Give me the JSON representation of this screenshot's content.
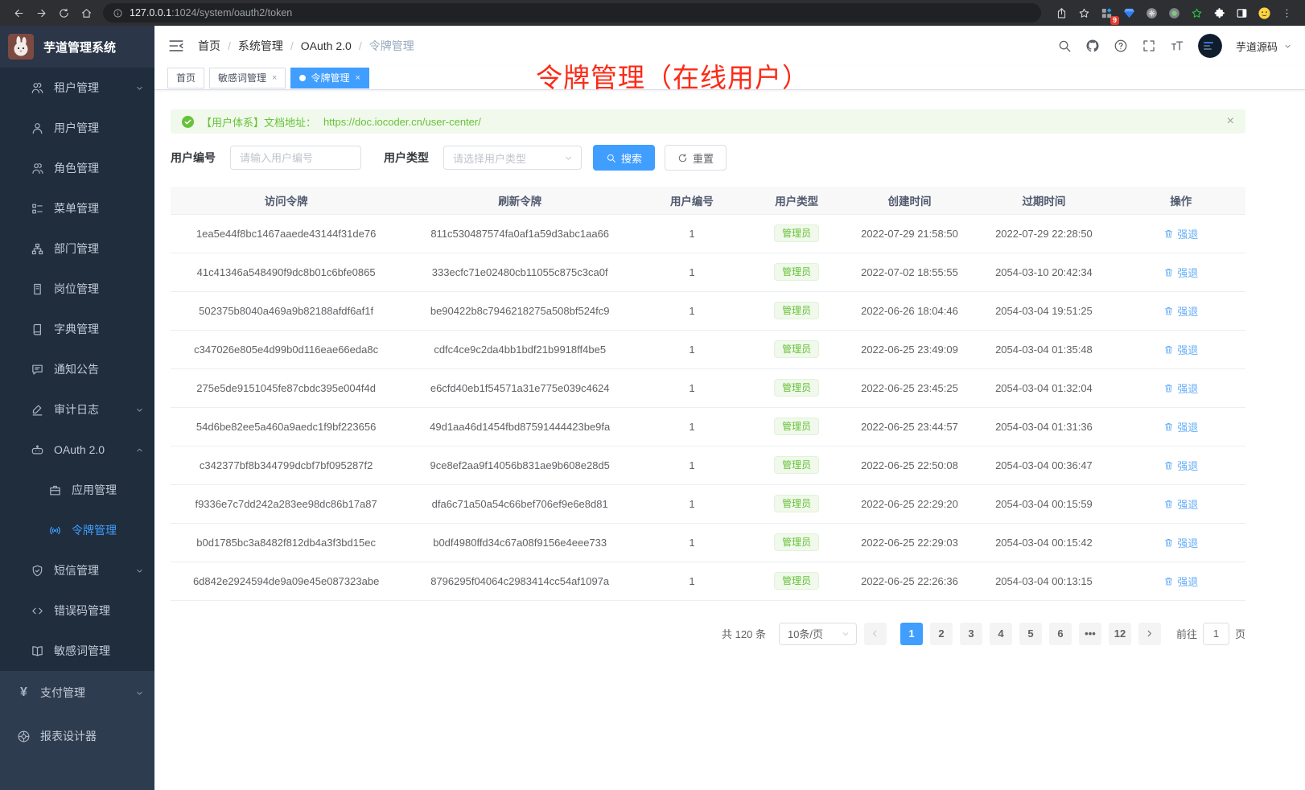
{
  "colors": {
    "accent": "#409eff",
    "success": "#67c23a",
    "annotation_red": "#fb2b17",
    "sidebar_dark": "#1f2d3d",
    "sidebar_light": "#2e3c50"
  },
  "browser": {
    "url_host": "127.0.0.1",
    "url_rest": ":1024/system/oauth2/token",
    "extension_badge": "9"
  },
  "sidebar": {
    "logo_title": "芋道管理系统",
    "menu": [
      {
        "label": "租户管理",
        "icon": "tenants-icon",
        "level": 1,
        "chevron": "down",
        "section": "upper"
      },
      {
        "label": "用户管理",
        "icon": "user-icon",
        "level": 1,
        "section": "upper"
      },
      {
        "label": "角色管理",
        "icon": "roles-icon",
        "level": 1,
        "section": "upper"
      },
      {
        "label": "菜单管理",
        "icon": "menu-icon",
        "level": 1,
        "section": "upper"
      },
      {
        "label": "部门管理",
        "icon": "dept-icon",
        "level": 1,
        "section": "upper"
      },
      {
        "label": "岗位管理",
        "icon": "post-icon",
        "level": 1,
        "section": "upper"
      },
      {
        "label": "字典管理",
        "icon": "dict-icon",
        "level": 1,
        "section": "upper"
      },
      {
        "label": "通知公告",
        "icon": "notice-icon",
        "level": 1,
        "section": "upper"
      },
      {
        "label": "审计日志",
        "icon": "audit-icon",
        "level": 1,
        "chevron": "down",
        "section": "upper"
      },
      {
        "label": "OAuth 2.0",
        "icon": "oauth-icon",
        "level": 1,
        "chevron": "up",
        "section": "upper"
      },
      {
        "label": "应用管理",
        "icon": "app-icon",
        "level": 2,
        "section": "upper"
      },
      {
        "label": "令牌管理",
        "icon": "token-icon",
        "level": 2,
        "active": true,
        "section": "upper"
      },
      {
        "label": "短信管理",
        "icon": "sms-icon",
        "level": 1,
        "chevron": "down",
        "section": "upper"
      },
      {
        "label": "错误码管理",
        "icon": "errcode-icon",
        "level": 1,
        "section": "upper"
      },
      {
        "label": "敏感词管理",
        "icon": "sensitive-icon",
        "level": 1,
        "section": "upper"
      },
      {
        "label": "支付管理",
        "icon": "pay-icon",
        "level": 0,
        "chevron": "down",
        "section": "lower"
      },
      {
        "label": "报表设计器",
        "icon": "report-icon",
        "level": 0,
        "section": "lower"
      }
    ]
  },
  "header": {
    "breadcrumb": [
      "首页",
      "系统管理",
      "OAuth 2.0",
      "令牌管理"
    ],
    "username": "芋道源码"
  },
  "tabs": [
    {
      "label": "首页",
      "closable": false,
      "active": false
    },
    {
      "label": "敏感词管理",
      "closable": true,
      "active": false
    },
    {
      "label": "令牌管理",
      "closable": true,
      "active": true
    }
  ],
  "annotation": "令牌管理（在线用户）",
  "alert": {
    "text": "【用户体系】文档地址：",
    "link": "https://doc.iocoder.cn/user-center/"
  },
  "filters": {
    "user_id_label": "用户编号",
    "user_id_placeholder": "请输入用户编号",
    "user_type_label": "用户类型",
    "user_type_placeholder": "请选择用户类型",
    "search_label": "搜索",
    "reset_label": "重置"
  },
  "table": {
    "columns": [
      "访问令牌",
      "刷新令牌",
      "用户编号",
      "用户类型",
      "创建时间",
      "过期时间",
      "操作"
    ],
    "user_type_badge": "管理员",
    "action_label": "强退",
    "rows": [
      {
        "access": "1ea5e44f8bc1467aaede43144f31de76",
        "refresh": "811c530487574fa0af1a59d3abc1aa66",
        "user_id": "1",
        "created": "2022-07-29 21:58:50",
        "expires": "2022-07-29 22:28:50"
      },
      {
        "access": "41c41346a548490f9dc8b01c6bfe0865",
        "refresh": "333ecfc71e02480cb11055c875c3ca0f",
        "user_id": "1",
        "created": "2022-07-02 18:55:55",
        "expires": "2054-03-10 20:42:34"
      },
      {
        "access": "502375b8040a469a9b82188afdf6af1f",
        "refresh": "be90422b8c7946218275a508bf524fc9",
        "user_id": "1",
        "created": "2022-06-26 18:04:46",
        "expires": "2054-03-04 19:51:25"
      },
      {
        "access": "c347026e805e4d99b0d116eae66eda8c",
        "refresh": "cdfc4ce9c2da4bb1bdf21b9918ff4be5",
        "user_id": "1",
        "created": "2022-06-25 23:49:09",
        "expires": "2054-03-04 01:35:48"
      },
      {
        "access": "275e5de9151045fe87cbdc395e004f4d",
        "refresh": "e6cfd40eb1f54571a31e775e039c4624",
        "user_id": "1",
        "created": "2022-06-25 23:45:25",
        "expires": "2054-03-04 01:32:04"
      },
      {
        "access": "54d6be82ee5a460a9aedc1f9bf223656",
        "refresh": "49d1aa46d1454fbd87591444423be9fa",
        "user_id": "1",
        "created": "2022-06-25 23:44:57",
        "expires": "2054-03-04 01:31:36"
      },
      {
        "access": "c342377bf8b344799dcbf7bf095287f2",
        "refresh": "9ce8ef2aa9f14056b831ae9b608e28d5",
        "user_id": "1",
        "created": "2022-06-25 22:50:08",
        "expires": "2054-03-04 00:36:47"
      },
      {
        "access": "f9336e7c7dd242a283ee98dc86b17a87",
        "refresh": "dfa6c71a50a54c66bef706ef9e6e8d81",
        "user_id": "1",
        "created": "2022-06-25 22:29:20",
        "expires": "2054-03-04 00:15:59"
      },
      {
        "access": "b0d1785bc3a8482f812db4a3f3bd15ec",
        "refresh": "b0df4980ffd34c67a08f9156e4eee733",
        "user_id": "1",
        "created": "2022-06-25 22:29:03",
        "expires": "2054-03-04 00:15:42"
      },
      {
        "access": "6d842e2924594de9a09e45e087323abe",
        "refresh": "8796295f04064c2983414cc54af1097a",
        "user_id": "1",
        "created": "2022-06-25 22:26:36",
        "expires": "2054-03-04 00:13:15"
      }
    ]
  },
  "pagination": {
    "total_text": "共 120 条",
    "page_size": "10条/页",
    "pages": [
      "1",
      "2",
      "3",
      "4",
      "5",
      "6",
      "...",
      "12"
    ],
    "active_page": "1",
    "goto_label": "前往",
    "goto_value": "1",
    "goto_suffix": "页"
  }
}
